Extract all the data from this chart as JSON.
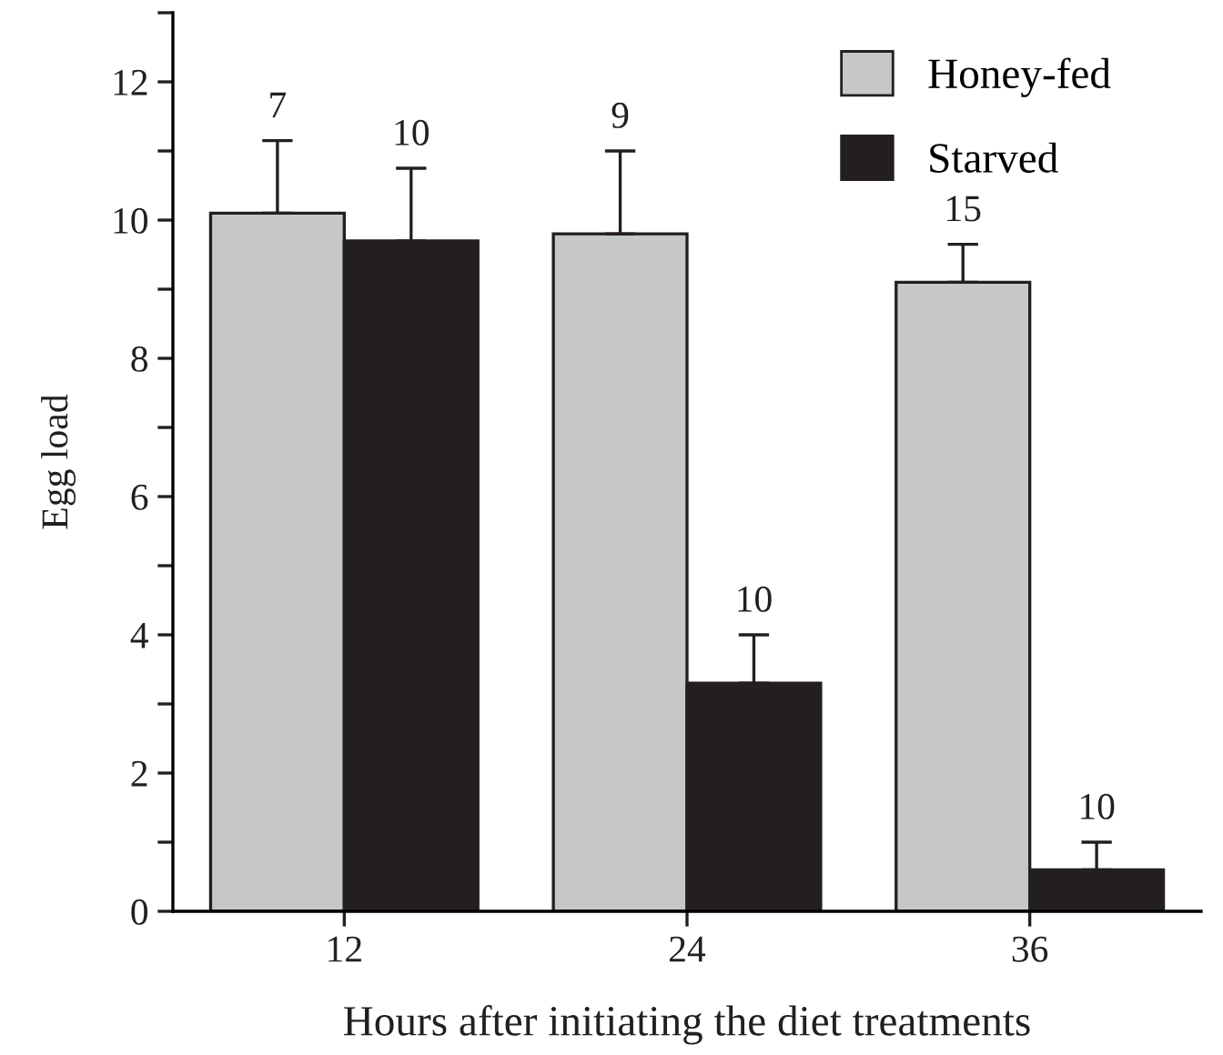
{
  "chart_data": {
    "type": "bar",
    "xlabel": "Hours after initiating the diet treatments",
    "ylabel": "Egg load",
    "categories": [
      "12",
      "24",
      "36"
    ],
    "series": [
      {
        "name": "Honey-fed",
        "color": "#c6c7c9",
        "values": [
          10.1,
          9.8,
          9.1
        ],
        "errors": [
          1.05,
          1.2,
          0.55
        ]
      },
      {
        "name": "Starved",
        "color": "#231f20",
        "values": [
          9.7,
          3.3,
          0.6
        ],
        "errors": [
          1.05,
          0.7,
          0.4
        ]
      }
    ],
    "ylim": [
      0,
      13
    ],
    "yticks": [
      0,
      {
        "value": 1,
        "label": null
      },
      2,
      {
        "value": 3,
        "label": null
      },
      4,
      {
        "value": 5,
        "label": null
      },
      6,
      {
        "value": 7,
        "label": null
      },
      8,
      {
        "value": 9,
        "label": null
      },
      10,
      {
        "value": 11,
        "label": null
      },
      12,
      {
        "value": 13,
        "label": null
      }
    ],
    "annotations": [
      "7",
      "10",
      "9",
      "10",
      "15",
      "10"
    ],
    "legend": "top right",
    "grid": false
  }
}
